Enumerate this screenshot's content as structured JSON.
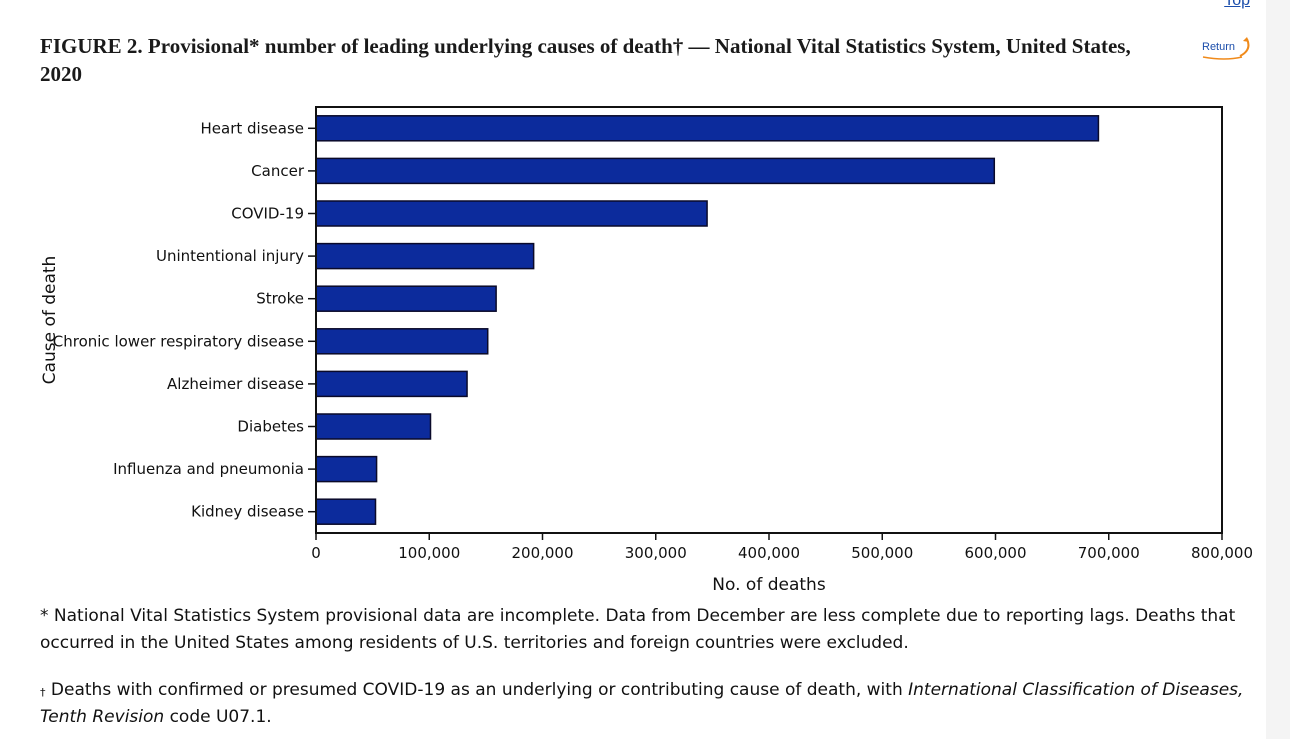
{
  "nav": {
    "top_label": "Top",
    "return_label": "Return"
  },
  "figure": {
    "title": "FIGURE 2. Provisional* number of leading underlying causes of death† — National Vital Statistics System, United States, 2020"
  },
  "chart_data": {
    "type": "bar",
    "orientation": "horizontal",
    "categories": [
      "Heart disease",
      "Cancer",
      "COVID-19",
      "Unintentional injury",
      "Stroke",
      "Chronic lower respiratory disease",
      "Alzheimer disease",
      "Diabetes",
      "Influenza and pneumonia",
      "Kidney disease"
    ],
    "values": [
      690882,
      598932,
      345323,
      192176,
      159050,
      151637,
      133382,
      101106,
      53495,
      52547
    ],
    "xlabel": "No. of deaths",
    "ylabel": "Cause of death",
    "xlim": [
      0,
      800000
    ],
    "x_ticks": [
      0,
      100000,
      200000,
      300000,
      400000,
      500000,
      600000,
      700000,
      800000
    ],
    "x_tick_labels": [
      "0",
      "100,000",
      "200,000",
      "300,000",
      "400,000",
      "500,000",
      "600,000",
      "700,000",
      "800,000"
    ],
    "bar_color": "#0c2b9c",
    "bar_edge_color": "#0a0a2a",
    "grid": false,
    "legend": "none"
  },
  "footnotes": {
    "star_symbol": "*",
    "star_text": "National Vital Statistics System provisional data are incomplete. Data from December are less complete due to reporting lags. Deaths that occurred in the United States among residents of U.S. territories and foreign countries were excluded.",
    "dagger_symbol": "†",
    "dagger_text_before": "Deaths with confirmed or presumed COVID-19 as an underlying or contributing cause of death, with",
    "dagger_italic": "International Classification of Diseases, Tenth Revision",
    "dagger_text_after": "code U07.1."
  }
}
